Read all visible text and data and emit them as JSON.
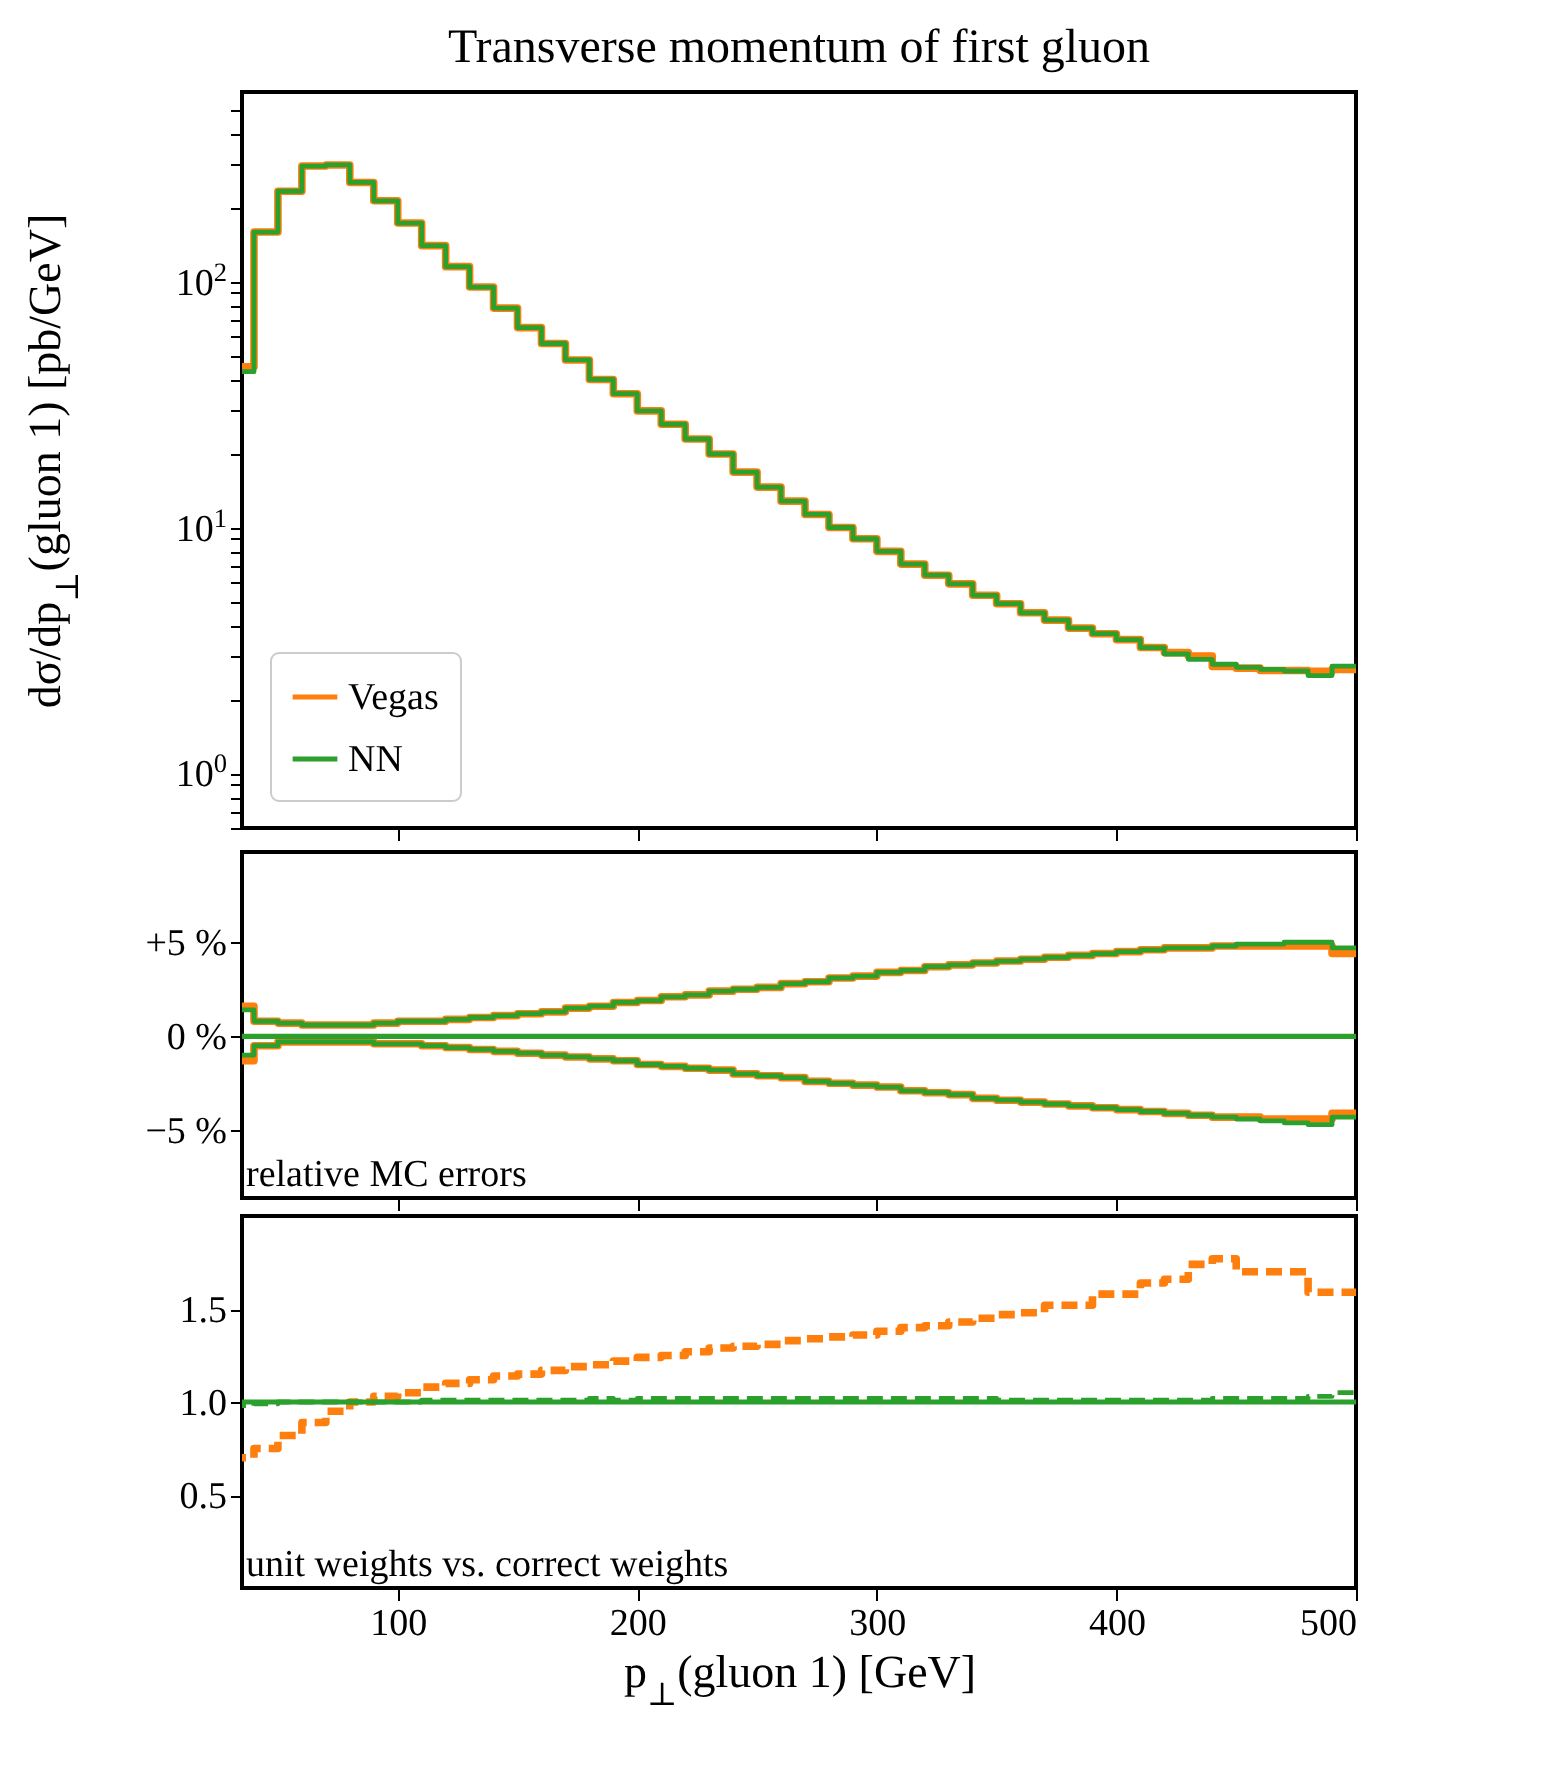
{
  "chart_data": [
    {
      "type": "step",
      "title": "Transverse momentum of first gluon",
      "ylabel": "dσ/dp$_{⊥}$(gluon 1) [pb/GeV]",
      "log": true,
      "legend": "bottom left",
      "tick_labels": "y",
      "x": [
        40,
        50,
        60,
        70,
        80,
        90,
        100,
        110,
        120,
        130,
        140,
        150,
        160,
        170,
        180,
        190,
        200,
        210,
        220,
        230,
        240,
        250,
        260,
        270,
        280,
        290,
        300,
        310,
        320,
        330,
        340,
        350,
        360,
        370,
        380,
        390,
        400,
        410,
        420,
        430,
        440,
        450,
        460,
        470,
        480,
        490,
        500
      ],
      "xlim": [
        35,
        500
      ],
      "xticks": [
        100,
        200,
        300,
        400,
        500
      ],
      "ylim": [
        0.6,
        590
      ],
      "yticks": [
        {
          "value": 0.6,
          "label": null
        },
        {
          "value": 0.7,
          "label": null
        },
        {
          "value": 0.8,
          "label": null
        },
        {
          "value": 0.9,
          "label": null
        },
        {
          "value": 1,
          "label": "10$^{0}$"
        },
        {
          "value": 2,
          "label": null
        },
        {
          "value": 3,
          "label": null
        },
        {
          "value": 4,
          "label": null
        },
        {
          "value": 5,
          "label": null
        },
        {
          "value": 6,
          "label": null
        },
        {
          "value": 7,
          "label": null
        },
        {
          "value": 8,
          "label": null
        },
        {
          "value": 9,
          "label": null
        },
        {
          "value": 10,
          "label": "10$^{1}$"
        },
        {
          "value": 20,
          "label": null
        },
        {
          "value": 30,
          "label": null
        },
        {
          "value": 40,
          "label": null
        },
        {
          "value": 50,
          "label": null
        },
        {
          "value": 60,
          "label": null
        },
        {
          "value": 70,
          "label": null
        },
        {
          "value": 80,
          "label": null
        },
        {
          "value": 90,
          "label": null
        },
        {
          "value": 100,
          "label": "10$^{2}$"
        },
        {
          "value": 200,
          "label": null
        },
        {
          "value": 300,
          "label": null
        },
        {
          "value": 400,
          "label": null
        },
        {
          "value": 500,
          "label": null
        }
      ],
      "series": [
        {
          "name": "Vegas",
          "color": "#ff7f0e",
          "values": [
            45,
            159,
            233,
            295,
            298,
            253,
            213,
            173,
            140,
            115,
            95,
            78,
            65,
            56,
            48,
            40,
            35,
            29.8,
            26.3,
            22.9,
            19.9,
            16.8,
            14.6,
            12.8,
            11.3,
            10.0,
            9.0,
            8.0,
            7.1,
            6.4,
            5.9,
            5.3,
            4.9,
            4.5,
            4.2,
            3.9,
            3.7,
            3.5,
            3.25,
            3.1,
            3.0,
            2.72,
            2.68,
            2.62,
            2.62,
            2.6,
            2.65
          ]
        },
        {
          "name": "NN",
          "color": "#2ca02c",
          "values": [
            43,
            159,
            233,
            295,
            298,
            253,
            213,
            173,
            140,
            115,
            95,
            78,
            65,
            56,
            48,
            40,
            35,
            29.8,
            26.3,
            22.9,
            19.9,
            16.8,
            14.6,
            12.8,
            11.3,
            10.0,
            9.0,
            8.0,
            7.1,
            6.4,
            5.9,
            5.3,
            4.9,
            4.5,
            4.2,
            3.9,
            3.7,
            3.5,
            3.25,
            3.06,
            2.91,
            2.78,
            2.7,
            2.65,
            2.61,
            2.5,
            2.73
          ]
        }
      ]
    },
    {
      "type": "step",
      "tick_labels": "y",
      "annotations": [
        "relative MC errors"
      ],
      "x": [
        40,
        50,
        60,
        70,
        80,
        90,
        100,
        110,
        120,
        130,
        140,
        150,
        160,
        170,
        180,
        190,
        200,
        210,
        220,
        230,
        240,
        250,
        260,
        270,
        280,
        290,
        300,
        310,
        320,
        330,
        340,
        350,
        360,
        370,
        380,
        390,
        400,
        410,
        420,
        430,
        440,
        450,
        460,
        470,
        480,
        490,
        500
      ],
      "xlim": [
        35,
        500
      ],
      "xticks": [
        100,
        200,
        300,
        400,
        500
      ],
      "ylim": [
        -8.6,
        9.8
      ],
      "yticks": [
        {
          "value": 5,
          "label": "+5 %"
        },
        {
          "value": 0,
          "label": "0 %"
        },
        {
          "value": -5,
          "label": "−5 %"
        }
      ],
      "ref_lines": [
        {
          "axis": "y",
          "value": 0,
          "color": "#2ca02c"
        }
      ],
      "series": [
        {
          "color": "#ff7f0e",
          "values": [
            1.6,
            0.8,
            0.7,
            0.6,
            0.6,
            0.6,
            0.7,
            0.8,
            0.8,
            0.9,
            1.0,
            1.1,
            1.2,
            1.3,
            1.5,
            1.6,
            1.8,
            1.9,
            2.1,
            2.2,
            2.4,
            2.5,
            2.6,
            2.8,
            2.9,
            3.1,
            3.2,
            3.4,
            3.5,
            3.7,
            3.8,
            3.9,
            4.0,
            4.1,
            4.2,
            4.3,
            4.4,
            4.5,
            4.6,
            4.7,
            4.7,
            4.8,
            4.8,
            4.8,
            4.8,
            4.8,
            4.4
          ]
        },
        {
          "color": "#ff7f0e",
          "values": [
            -1.3,
            -0.5,
            -0.3,
            -0.3,
            -0.3,
            -0.3,
            -0.4,
            -0.4,
            -0.5,
            -0.6,
            -0.7,
            -0.8,
            -0.9,
            -1.0,
            -1.1,
            -1.2,
            -1.3,
            -1.5,
            -1.6,
            -1.7,
            -1.8,
            -2.0,
            -2.1,
            -2.2,
            -2.4,
            -2.5,
            -2.6,
            -2.7,
            -2.9,
            -3.0,
            -3.1,
            -3.3,
            -3.4,
            -3.5,
            -3.6,
            -3.7,
            -3.8,
            -3.9,
            -4.0,
            -4.1,
            -4.2,
            -4.3,
            -4.3,
            -4.4,
            -4.4,
            -4.4,
            -4.1
          ]
        },
        {
          "color": "#2ca02c",
          "values": [
            1.4,
            0.8,
            0.7,
            0.6,
            0.6,
            0.6,
            0.7,
            0.8,
            0.8,
            0.9,
            1.0,
            1.1,
            1.2,
            1.3,
            1.5,
            1.6,
            1.8,
            1.9,
            2.1,
            2.2,
            2.4,
            2.5,
            2.6,
            2.8,
            2.9,
            3.1,
            3.2,
            3.4,
            3.5,
            3.7,
            3.8,
            3.9,
            4.0,
            4.1,
            4.2,
            4.3,
            4.4,
            4.5,
            4.6,
            4.7,
            4.7,
            4.8,
            4.9,
            4.9,
            5.0,
            5.0,
            4.7
          ]
        },
        {
          "color": "#2ca02c",
          "values": [
            -1.0,
            -0.5,
            -0.3,
            -0.3,
            -0.3,
            -0.3,
            -0.4,
            -0.4,
            -0.5,
            -0.6,
            -0.7,
            -0.8,
            -0.9,
            -1.0,
            -1.1,
            -1.2,
            -1.3,
            -1.5,
            -1.6,
            -1.7,
            -1.8,
            -2.0,
            -2.1,
            -2.2,
            -2.4,
            -2.5,
            -2.6,
            -2.7,
            -2.9,
            -3.0,
            -3.1,
            -3.3,
            -3.4,
            -3.5,
            -3.6,
            -3.7,
            -3.8,
            -3.9,
            -4.0,
            -4.1,
            -4.2,
            -4.3,
            -4.4,
            -4.5,
            -4.6,
            -4.7,
            -4.3
          ]
        }
      ]
    },
    {
      "type": "step",
      "xlabel": "p$_{⊥}$(gluon 1) [GeV]",
      "line_style": "dashed",
      "annotations": [
        "unit weights vs. correct weights"
      ],
      "x": [
        40,
        50,
        60,
        70,
        80,
        90,
        100,
        110,
        120,
        130,
        140,
        150,
        160,
        170,
        180,
        190,
        200,
        210,
        220,
        230,
        240,
        250,
        260,
        270,
        280,
        290,
        300,
        310,
        320,
        330,
        340,
        350,
        360,
        370,
        380,
        390,
        400,
        410,
        420,
        430,
        440,
        450,
        460,
        470,
        480,
        490,
        500
      ],
      "xlim": [
        35,
        500
      ],
      "xticks": [
        100,
        200,
        300,
        400,
        500
      ],
      "ylim": [
        0,
        2
      ],
      "yticks": [
        {
          "value": 0.5,
          "label": "0.5"
        },
        {
          "value": 1,
          "label": "1.0"
        },
        {
          "value": 1.5,
          "label": "1.5"
        }
      ],
      "ref_lines": [
        {
          "axis": "y",
          "value": 1,
          "color": "#2ca02c",
          "line_style": "solid"
        }
      ],
      "series": [
        {
          "color": "#ff7f0e",
          "values": [
            0.7,
            0.75,
            0.82,
            0.89,
            0.95,
            1.0,
            1.03,
            1.05,
            1.08,
            1.1,
            1.12,
            1.14,
            1.15,
            1.17,
            1.19,
            1.2,
            1.22,
            1.24,
            1.25,
            1.27,
            1.29,
            1.3,
            1.31,
            1.33,
            1.34,
            1.35,
            1.36,
            1.38,
            1.4,
            1.41,
            1.43,
            1.45,
            1.47,
            1.48,
            1.52,
            1.52,
            1.58,
            1.58,
            1.64,
            1.66,
            1.74,
            1.77,
            1.7,
            1.7,
            1.7,
            1.59,
            1.59
          ]
        },
        {
          "color": "#2ca02c",
          "values": [
            0.98,
            0.99,
            1.0,
            1.0,
            1.0,
            1.0,
            1.0,
            1.0,
            1.01,
            1.01,
            1.01,
            1.01,
            1.01,
            1.01,
            1.01,
            1.02,
            1.01,
            1.02,
            1.02,
            1.02,
            1.02,
            1.02,
            1.02,
            1.02,
            1.02,
            1.02,
            1.02,
            1.02,
            1.02,
            1.02,
            1.02,
            1.02,
            1.01,
            1.01,
            1.01,
            1.01,
            1.01,
            1.01,
            1.01,
            1.01,
            1.01,
            1.02,
            1.02,
            1.02,
            1.02,
            1.03,
            1.05
          ]
        }
      ]
    }
  ]
}
